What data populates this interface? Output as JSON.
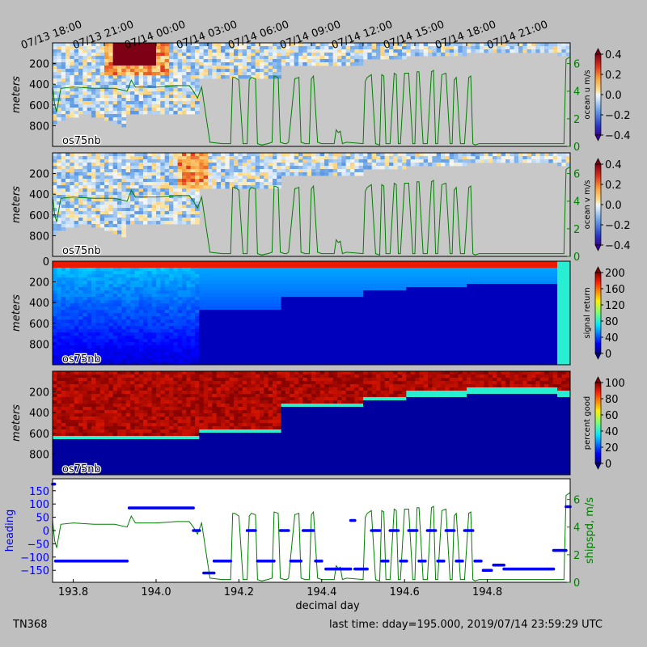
{
  "footer": {
    "cruise": "TN368",
    "last_time": "last time: dday=195.000,  2019/07/14 23:59:29 UTC"
  },
  "chart_data": [
    {
      "type": "heatmap",
      "panel_label": "os75nb",
      "ylabel": "meters",
      "ylim": [
        1000,
        0
      ],
      "yticks": [
        200,
        400,
        600,
        800
      ],
      "xlim": [
        193.75,
        195.0
      ],
      "top_time_ticks": [
        {
          "dday": 193.75,
          "label": "07/13 18:00"
        },
        {
          "dday": 193.875,
          "label": "07/13 21:00"
        },
        {
          "dday": 194.0,
          "label": "07/14 00:00"
        },
        {
          "dday": 194.125,
          "label": "07/14 03:00"
        },
        {
          "dday": 194.25,
          "label": "07/14 06:00"
        },
        {
          "dday": 194.375,
          "label": "07/14 09:00"
        },
        {
          "dday": 194.5,
          "label": "07/14 12:00"
        },
        {
          "dday": 194.625,
          "label": "07/14 15:00"
        },
        {
          "dday": 194.75,
          "label": "07/14 18:00"
        },
        {
          "dday": 194.875,
          "label": "07/14 21:00"
        }
      ],
      "colorbar": {
        "label": "ocean u m/s",
        "min": -0.4,
        "max": 0.4,
        "ticks": [
          "0.4",
          "0.2",
          "0.0",
          "−0.2",
          "−0.4"
        ],
        "colormap": "RdYlBu_r"
      },
      "right_axis": {
        "ylim": [
          0,
          7.5
        ],
        "ticks": [
          "0",
          "2",
          "4",
          "6"
        ],
        "color": "#007f00"
      },
      "features": {
        "positive_core": {
          "dday": [
            193.9,
            194.0
          ],
          "depth": [
            0,
            200
          ],
          "value": 0.4
        }
      }
    },
    {
      "type": "heatmap",
      "panel_label": "os75nb",
      "ylabel": "meters",
      "ylim": [
        1000,
        0
      ],
      "yticks": [
        200,
        400,
        600,
        800
      ],
      "xlim": [
        193.75,
        195.0
      ],
      "colorbar": {
        "label": "ocean v m/s",
        "min": -0.4,
        "max": 0.4,
        "ticks": [
          "0.4",
          "0.2",
          "0.0",
          "−0.2",
          "−0.4"
        ],
        "colormap": "RdYlBu_r"
      },
      "right_axis": {
        "ylim": [
          0,
          7.5
        ],
        "ticks": [
          "0",
          "2",
          "4",
          "6"
        ],
        "color": "#007f00"
      }
    },
    {
      "type": "heatmap",
      "panel_label": "os75nb",
      "ylabel": "meters",
      "ylim": [
        1000,
        0
      ],
      "yticks": [
        0,
        200,
        400,
        600,
        800
      ],
      "xlim": [
        193.75,
        195.0
      ],
      "colorbar": {
        "label": "signal return",
        "min": 0,
        "max": 200,
        "ticks": [
          "200",
          "160",
          "120",
          "80",
          "40",
          "0"
        ],
        "colormap": "jet"
      }
    },
    {
      "type": "heatmap",
      "panel_label": "os75nb",
      "ylabel": "meters",
      "ylim": [
        1000,
        0
      ],
      "yticks": [
        200,
        400,
        600,
        800
      ],
      "xlim": [
        193.75,
        195.0
      ],
      "colorbar": {
        "label": "percent good",
        "min": 0,
        "max": 100,
        "ticks": [
          "100",
          "80",
          "60",
          "40",
          "20",
          "0"
        ],
        "colormap": "jet"
      }
    },
    {
      "type": "scatter",
      "xlabel": "decimal day",
      "ylabel": "heading",
      "ylabel_right": "shipspd, m/s",
      "xlim": [
        193.75,
        195.0
      ],
      "xticks": [
        "193.8",
        "194.0",
        "194.2",
        "194.4",
        "194.6",
        "194.8"
      ],
      "ylim": [
        -195,
        195
      ],
      "yticks": [
        "150",
        "100",
        "50",
        "0",
        "−50",
        "−100",
        "−150"
      ],
      "right_ylim": [
        0,
        7.5
      ],
      "right_yticks": [
        "0",
        "2",
        "4",
        "6"
      ],
      "heading_color": "#0000ff",
      "speed_color": "#007f00",
      "heading_segments": [
        {
          "x0": 193.75,
          "x1": 193.755,
          "y": 175
        },
        {
          "x0": 193.757,
          "x1": 193.93,
          "y": -115
        },
        {
          "x0": 193.935,
          "x1": 194.09,
          "y": 85
        },
        {
          "x0": 194.09,
          "x1": 194.105,
          "y": 0
        },
        {
          "x0": 194.115,
          "x1": 194.14,
          "y": -160
        },
        {
          "x0": 194.14,
          "x1": 194.18,
          "y": -115
        },
        {
          "x0": 194.22,
          "x1": 194.24,
          "y": 0
        },
        {
          "x0": 194.245,
          "x1": 194.285,
          "y": -115
        },
        {
          "x0": 194.3,
          "x1": 194.32,
          "y": 0
        },
        {
          "x0": 194.325,
          "x1": 194.35,
          "y": -115
        },
        {
          "x0": 194.355,
          "x1": 194.38,
          "y": 0
        },
        {
          "x0": 194.385,
          "x1": 194.4,
          "y": -115
        },
        {
          "x0": 194.41,
          "x1": 194.47,
          "y": -145
        },
        {
          "x0": 194.47,
          "x1": 194.48,
          "y": 38
        },
        {
          "x0": 194.48,
          "x1": 194.51,
          "y": -145
        },
        {
          "x0": 194.52,
          "x1": 194.54,
          "y": 0
        },
        {
          "x0": 194.545,
          "x1": 194.56,
          "y": -115
        },
        {
          "x0": 194.565,
          "x1": 194.585,
          "y": 0
        },
        {
          "x0": 194.59,
          "x1": 194.605,
          "y": -115
        },
        {
          "x0": 194.61,
          "x1": 194.63,
          "y": 0
        },
        {
          "x0": 194.635,
          "x1": 194.65,
          "y": -115
        },
        {
          "x0": 194.655,
          "x1": 194.675,
          "y": 0
        },
        {
          "x0": 194.68,
          "x1": 194.695,
          "y": -115
        },
        {
          "x0": 194.7,
          "x1": 194.72,
          "y": 0
        },
        {
          "x0": 194.725,
          "x1": 194.74,
          "y": -115
        },
        {
          "x0": 194.745,
          "x1": 194.765,
          "y": 0
        },
        {
          "x0": 194.77,
          "x1": 194.785,
          "y": -115
        },
        {
          "x0": 194.79,
          "x1": 194.81,
          "y": -150
        },
        {
          "x0": 194.815,
          "x1": 194.84,
          "y": -130
        },
        {
          "x0": 194.84,
          "x1": 194.96,
          "y": -145
        },
        {
          "x0": 194.96,
          "x1": 194.99,
          "y": -75
        },
        {
          "x0": 194.99,
          "x1": 195.0,
          "y": 90
        }
      ],
      "ship_speed": {
        "x": [
          193.75,
          193.755,
          193.76,
          193.77,
          193.8,
          193.85,
          193.9,
          193.93,
          193.94,
          193.95,
          194.0,
          194.05,
          194.08,
          194.09,
          194.1,
          194.11,
          194.13,
          194.16,
          194.18,
          194.185,
          194.19,
          194.2,
          194.21,
          194.22,
          194.225,
          194.23,
          194.24,
          194.245,
          194.255,
          194.27,
          194.28,
          194.285,
          194.295,
          194.3,
          194.31,
          194.315,
          194.32,
          194.335,
          194.345,
          194.35,
          194.36,
          194.37,
          194.375,
          194.38,
          194.39,
          194.4,
          194.43,
          194.435,
          194.44,
          194.445,
          194.45,
          194.46,
          194.5,
          194.505,
          194.51,
          194.52,
          194.53,
          194.54,
          194.545,
          194.55,
          194.555,
          194.565,
          194.575,
          194.58,
          194.585,
          194.59,
          194.6,
          194.61,
          194.62,
          194.625,
          194.63,
          194.635,
          194.645,
          194.655,
          194.665,
          194.67,
          194.675,
          194.68,
          194.69,
          194.7,
          194.71,
          194.715,
          194.72,
          194.725,
          194.735,
          194.745,
          194.755,
          194.76,
          194.765,
          194.77,
          194.78,
          194.79,
          194.8,
          194.985,
          194.99,
          195.0
        ],
        "y": [
          4.5,
          3.0,
          2.5,
          4.2,
          4.3,
          4.2,
          4.2,
          4.0,
          4.8,
          4.3,
          4.3,
          4.4,
          4.4,
          4.0,
          3.5,
          4.3,
          0.3,
          0.2,
          0.2,
          5.0,
          5.0,
          4.8,
          0.2,
          0.2,
          4.8,
          5.0,
          4.9,
          0.2,
          0.1,
          0.2,
          0.3,
          5.1,
          5.0,
          0.3,
          0.2,
          0.2,
          0.3,
          4.9,
          5.0,
          0.3,
          0.2,
          0.2,
          4.9,
          5.1,
          0.3,
          0.2,
          0.2,
          1.2,
          1.0,
          1.1,
          0.2,
          0.3,
          0.2,
          4.7,
          5.0,
          5.2,
          0.2,
          0.1,
          5.2,
          5.1,
          0.2,
          0.2,
          5.3,
          5.2,
          0.2,
          0.2,
          5.3,
          5.3,
          0.2,
          0.2,
          5.4,
          5.4,
          0.2,
          0.2,
          5.4,
          5.5,
          0.2,
          0.2,
          5.2,
          5.3,
          0.2,
          0.2,
          4.8,
          5.0,
          0.2,
          0.2,
          5.0,
          5.1,
          0.2,
          0.1,
          0.2,
          0.2,
          0.2,
          0.2,
          6.3,
          6.5
        ]
      },
      "axes_edges_color": "#000000"
    }
  ]
}
